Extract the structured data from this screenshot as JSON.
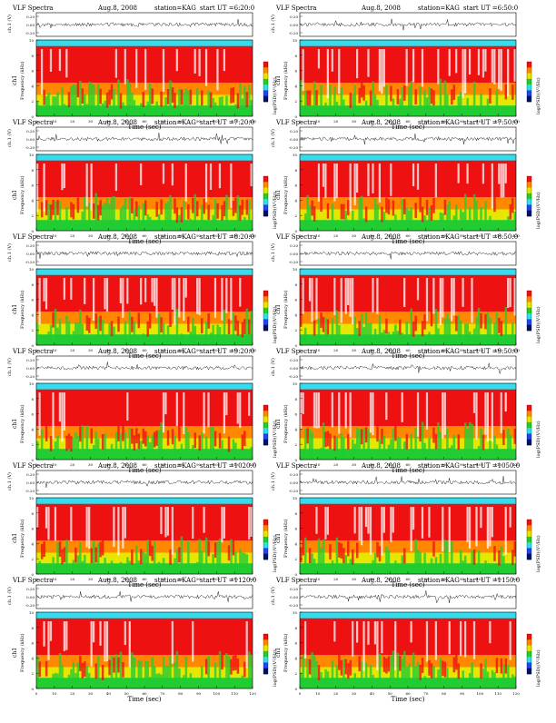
{
  "page": {
    "header_label": "VLF Spectra",
    "date_label": "Aug.",
    "year_label": ", 2008",
    "station_label": "station=KAG",
    "start_label": "start UT =",
    "xlabel": "Time (sec)",
    "freq_label": "Frequency (kHz)",
    "ch1_label": "ch1",
    "colorbar_label": "log(PSD)(V²/Hz)",
    "ch_axis_label": "ch.1 (V)"
  },
  "colors": {
    "white": "#ffffff",
    "red": "#ee1111",
    "orange": "#ff8800",
    "yellow": "#e6e600",
    "green": "#22cc33",
    "cyan": "#33ddee",
    "blue": "#2244ee",
    "navy": "#001166"
  },
  "panels": [
    {
      "start_ut": "6:20:0",
      "xmax": 120
    },
    {
      "start_ut": "6:50:0",
      "xmax": 120
    },
    {
      "start_ut": "7:20:0",
      "xmax": 120
    },
    {
      "start_ut": "7:50:0",
      "xmax": 120
    },
    {
      "start_ut": "8:20:0",
      "xmax": 120
    },
    {
      "start_ut": "8:50:0",
      "xmax": 120
    },
    {
      "start_ut": "9:20:0",
      "xmax": 120
    },
    {
      "start_ut": "9:50:0",
      "xmax": 120
    },
    {
      "start_ut": "1020:0",
      "xmax": 120
    },
    {
      "start_ut": "1050:0",
      "xmax": 120
    },
    {
      "start_ut": "1120:0",
      "xmax": 120
    },
    {
      "start_ut": "1150:0",
      "xmax": 120
    }
  ],
  "chart_data": {
    "type": "heatmap",
    "x_ticks": [
      0,
      10,
      20,
      30,
      40,
      50,
      60,
      70,
      80,
      90,
      100,
      110,
      120
    ],
    "y_ticks": [
      0,
      2,
      4,
      6,
      8,
      10
    ],
    "waveform_ticks": [
      "0.20",
      "0.00",
      "-0.20"
    ],
    "xlim": [
      0,
      120
    ],
    "ylim": [
      0,
      10
    ],
    "waveform_ylim": [
      -0.2,
      0.2
    ]
  }
}
